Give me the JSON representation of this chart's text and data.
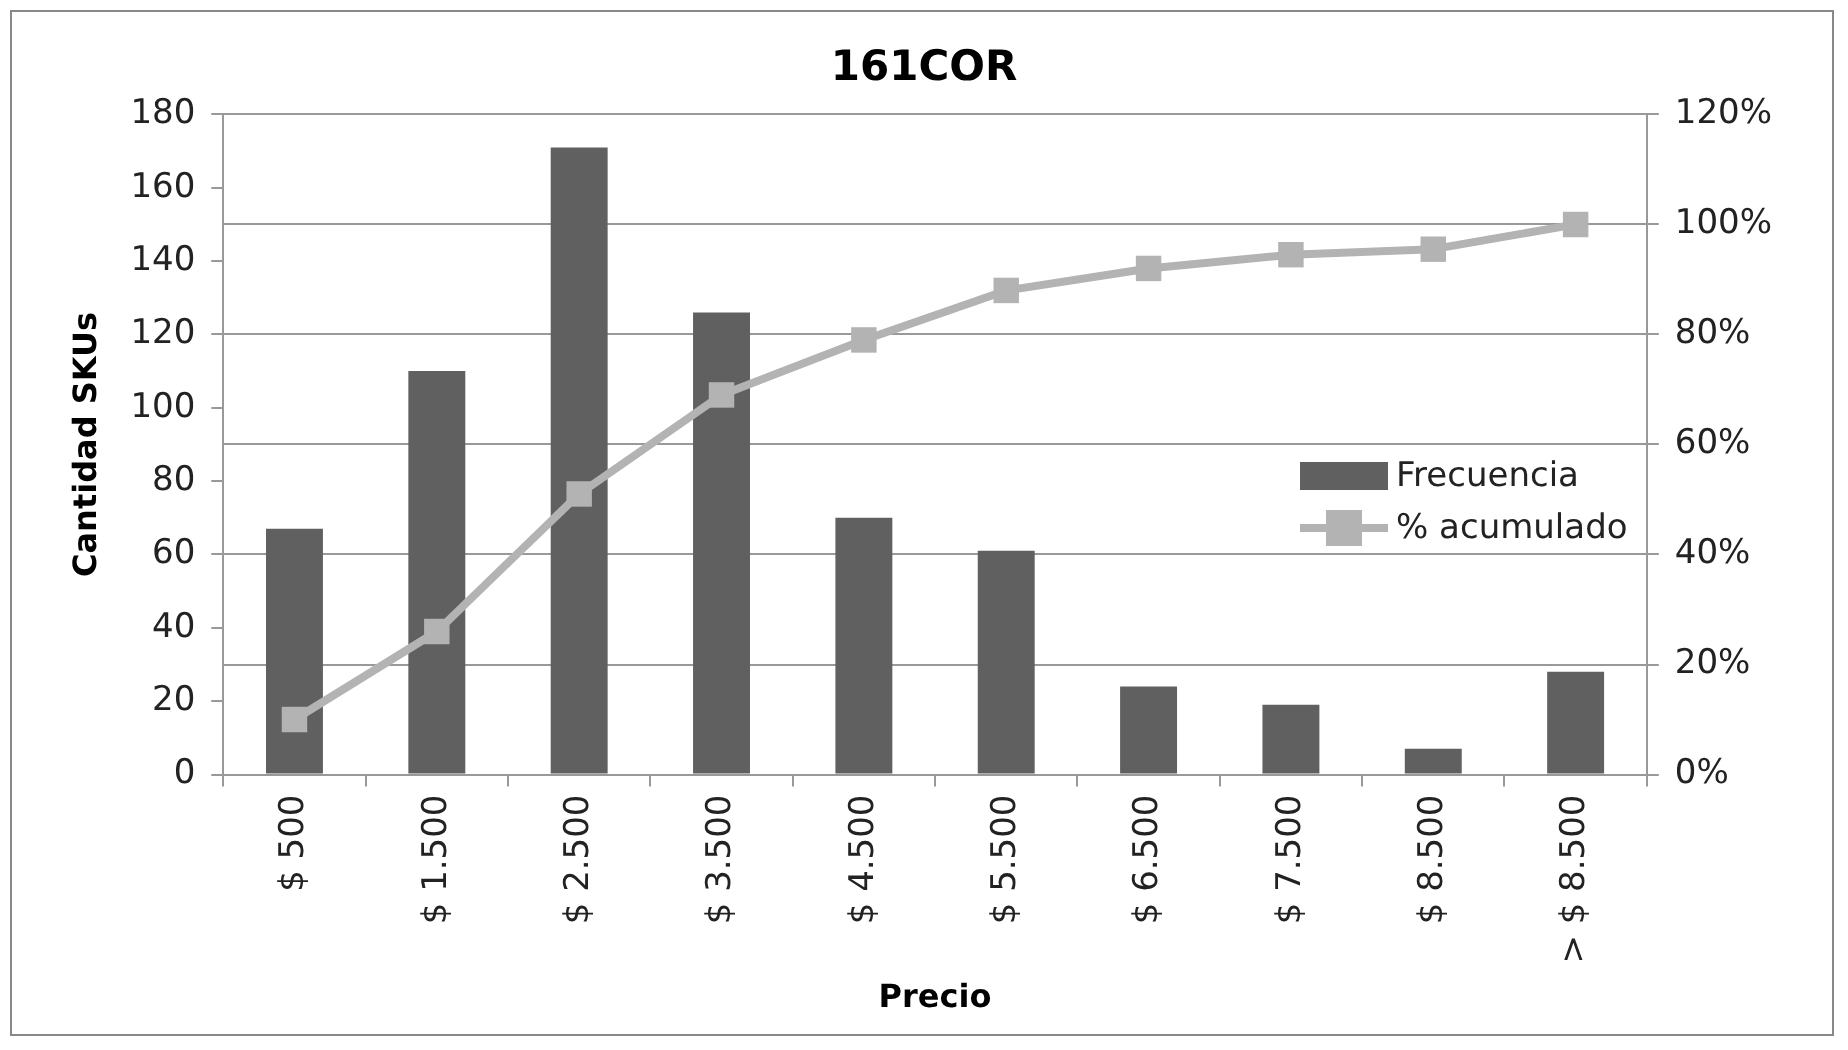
{
  "chart_data": {
    "type": "bar",
    "title": "161COR",
    "xlabel": "Precio",
    "ylabel": "Cantidad SKUs",
    "categories": [
      "$ 500",
      "$ 1.500",
      "$ 2.500",
      "$ 3.500",
      "$ 4.500",
      "$ 5.500",
      "$ 6.500",
      "$ 7.500",
      "$ 8.500",
      "> $ 8.500"
    ],
    "series": [
      {
        "name": "Frecuencia",
        "color": "#606060",
        "values": [
          67,
          110,
          171,
          126,
          70,
          61,
          24,
          19,
          7,
          28
        ]
      },
      {
        "name": "% acumulado",
        "type": "line",
        "axis": "y2",
        "color": "#b3b3b3",
        "values": [
          10,
          26,
          51,
          69,
          79,
          88,
          92,
          94.5,
          95.5,
          100
        ]
      }
    ],
    "ylim": [
      0,
      180
    ],
    "yticks": [
      0,
      20,
      40,
      60,
      80,
      100,
      120,
      140,
      160,
      180
    ],
    "y2lim": [
      0,
      120
    ],
    "y2ticks": [
      {
        "value": 0,
        "label": "0%"
      },
      {
        "value": 20,
        "label": "20%"
      },
      {
        "value": 40,
        "label": "40%"
      },
      {
        "value": 60,
        "label": "60%"
      },
      {
        "value": 80,
        "label": "80%"
      },
      {
        "value": 100,
        "label": "100%"
      },
      {
        "value": 120,
        "label": "120%"
      }
    ],
    "grid": "y",
    "legend": "right",
    "marker": "square"
  }
}
